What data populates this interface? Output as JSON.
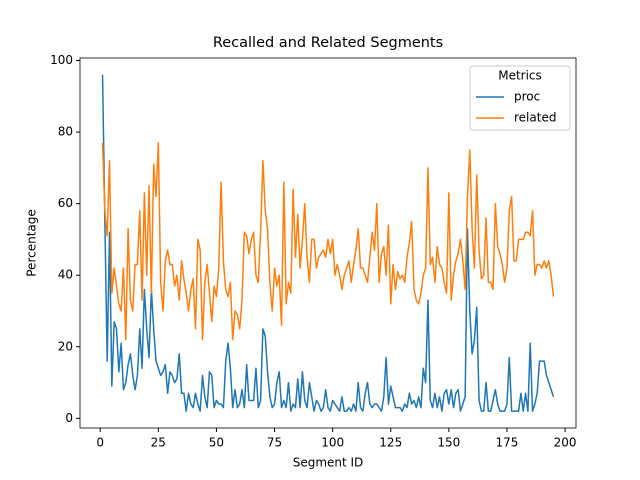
{
  "chart_data": {
    "type": "line",
    "title": "Recalled and Related Segments",
    "x_label": "Segment ID",
    "y_label": "Percentage",
    "x": [
      1,
      2,
      3,
      4,
      5,
      6,
      7,
      8,
      9,
      10,
      11,
      12,
      13,
      14,
      15,
      16,
      17,
      18,
      19,
      20,
      21,
      22,
      23,
      24,
      25,
      26,
      27,
      28,
      29,
      30,
      31,
      32,
      33,
      34,
      35,
      36,
      37,
      38,
      39,
      40,
      41,
      42,
      43,
      44,
      45,
      46,
      47,
      48,
      49,
      50,
      51,
      52,
      53,
      54,
      55,
      56,
      57,
      58,
      59,
      60,
      61,
      62,
      63,
      64,
      65,
      66,
      67,
      68,
      69,
      70,
      71,
      72,
      73,
      74,
      75,
      76,
      77,
      78,
      79,
      80,
      81,
      82,
      83,
      84,
      85,
      86,
      87,
      88,
      89,
      90,
      91,
      92,
      93,
      94,
      95,
      96,
      97,
      98,
      99,
      100,
      101,
      102,
      103,
      104,
      105,
      106,
      107,
      108,
      109,
      110,
      111,
      112,
      113,
      114,
      115,
      116,
      117,
      118,
      119,
      120,
      121,
      122,
      123,
      124,
      125,
      126,
      127,
      128,
      129,
      130,
      131,
      132,
      133,
      134,
      135,
      136,
      137,
      138,
      139,
      140,
      141,
      142,
      143,
      144,
      145,
      146,
      147,
      148,
      149,
      150,
      151,
      152,
      153,
      154,
      155,
      156,
      157,
      158,
      159,
      160,
      161,
      162,
      163,
      164,
      165,
      166,
      167,
      168,
      169,
      170,
      171,
      172,
      173,
      174,
      175,
      176,
      177,
      178,
      179,
      180,
      181,
      182,
      183,
      184,
      185,
      186,
      187,
      188,
      189,
      190,
      191,
      192,
      193,
      194,
      195
    ],
    "series": [
      {
        "name": "proc",
        "color": "#1f77b4",
        "values": [
          96,
          55,
          16,
          52,
          9,
          27,
          25,
          13,
          21,
          8,
          10,
          15,
          18,
          12,
          8,
          12,
          25,
          14,
          36,
          25,
          17,
          36,
          25,
          16,
          14,
          12,
          13,
          15,
          7,
          13,
          12,
          10,
          11,
          18,
          7,
          7,
          2,
          7,
          4,
          3,
          7,
          4,
          2,
          12,
          6,
          3,
          13,
          12,
          3,
          5,
          4,
          4,
          3,
          16,
          21,
          14,
          3,
          8,
          3,
          4,
          8,
          3,
          15,
          5,
          5,
          5,
          14,
          3,
          5,
          25,
          23,
          13,
          6,
          3,
          4,
          10,
          13,
          3,
          5,
          3,
          10,
          2,
          4,
          3,
          11,
          3,
          13,
          5,
          3,
          10,
          6,
          2,
          5,
          4,
          2,
          3,
          8,
          3,
          2,
          5,
          4,
          3,
          2,
          6,
          2,
          2,
          3,
          2,
          4,
          2,
          10,
          3,
          2,
          7,
          10,
          4,
          3,
          4,
          4,
          3,
          2,
          6,
          17,
          4,
          9,
          6,
          3,
          3,
          3,
          2,
          4,
          3,
          7,
          4,
          5,
          3,
          6,
          3,
          14,
          10,
          33,
          5,
          3,
          7,
          3,
          6,
          2,
          7,
          8,
          4,
          8,
          3,
          7,
          8,
          2,
          4,
          6,
          53,
          30,
          18,
          22,
          31,
          5,
          2,
          2,
          10,
          2,
          2,
          5,
          8,
          4,
          2,
          2,
          2,
          4,
          17,
          2,
          2,
          2,
          2,
          7,
          2,
          7,
          2,
          21,
          2,
          4,
          7,
          16,
          16,
          16,
          12,
          10,
          8,
          6
        ]
      },
      {
        "name": "related",
        "color": "#ff7f0e",
        "values": [
          77,
          58,
          51,
          72,
          35,
          42,
          37,
          32,
          30,
          42,
          22,
          53,
          33,
          30,
          43,
          43,
          58,
          33,
          63,
          40,
          65,
          35,
          71,
          62,
          77,
          38,
          30,
          44,
          47,
          43,
          43,
          37,
          40,
          33,
          44,
          39,
          35,
          30,
          36,
          39,
          25,
          50,
          47,
          22,
          38,
          43,
          35,
          27,
          37,
          34,
          42,
          66,
          44,
          36,
          34,
          38,
          22,
          30,
          29,
          25,
          33,
          52,
          51,
          46,
          50,
          52,
          40,
          38,
          52,
          72,
          58,
          53,
          38,
          30,
          42,
          37,
          40,
          26,
          66,
          32,
          38,
          35,
          64,
          45,
          57,
          42,
          50,
          60,
          45,
          38,
          50,
          50,
          42,
          45,
          46,
          47,
          45,
          50,
          46,
          50,
          40,
          43,
          40,
          36,
          40,
          42,
          44,
          38,
          43,
          47,
          53,
          42,
          42,
          40,
          38,
          45,
          52,
          47,
          60,
          38,
          46,
          48,
          40,
          54,
          32,
          43,
          36,
          41,
          39,
          40,
          38,
          45,
          49,
          55,
          36,
          33,
          32,
          35,
          40,
          42,
          70,
          43,
          45,
          38,
          48,
          43,
          42,
          38,
          35,
          63,
          33,
          40,
          44,
          46,
          50,
          44,
          36,
          62,
          75,
          53,
          42,
          68,
          47,
          39,
          40,
          56,
          38,
          38,
          36,
          60,
          48,
          46,
          43,
          38,
          42,
          58,
          62,
          44,
          44,
          50,
          50,
          50,
          52,
          52,
          51,
          58,
          40,
          43,
          43,
          42,
          44,
          42,
          44,
          40,
          34
        ]
      }
    ],
    "xlim": [
      -8.7,
      204.7
    ],
    "ylim": [
      -2.7,
      100.7
    ],
    "xticks": [
      0,
      25,
      50,
      75,
      100,
      125,
      150,
      175,
      200
    ],
    "yticks": [
      0,
      20,
      40,
      60,
      80,
      100
    ],
    "legend": {
      "title": "Metrics",
      "position": "upper right"
    }
  }
}
